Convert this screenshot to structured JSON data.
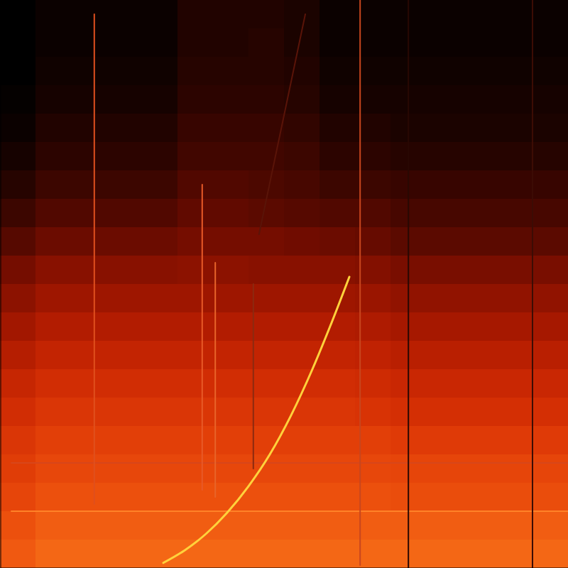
{
  "chart_data": {
    "type": "heatmap",
    "xlim": [
      0,
      100
    ],
    "ylim": [
      0,
      100
    ],
    "zlim": [
      0,
      1
    ],
    "tick_labels": false,
    "grid": false,
    "cells": [
      [
        0.0,
        0.02,
        0.02,
        0.02,
        0.02,
        0.06,
        0.06,
        0.06,
        0.05,
        0.02,
        0.02,
        0.02,
        0.02,
        0.02,
        0.02,
        0.02
      ],
      [
        0.0,
        0.02,
        0.02,
        0.02,
        0.02,
        0.06,
        0.06,
        0.07,
        0.05,
        0.02,
        0.02,
        0.02,
        0.02,
        0.02,
        0.02,
        0.02
      ],
      [
        0.0,
        0.03,
        0.03,
        0.03,
        0.03,
        0.07,
        0.07,
        0.07,
        0.06,
        0.03,
        0.03,
        0.03,
        0.03,
        0.03,
        0.03,
        0.03
      ],
      [
        0.01,
        0.04,
        0.04,
        0.04,
        0.04,
        0.08,
        0.08,
        0.08,
        0.07,
        0.04,
        0.04,
        0.04,
        0.04,
        0.04,
        0.04,
        0.04
      ],
      [
        0.02,
        0.06,
        0.06,
        0.06,
        0.06,
        0.1,
        0.1,
        0.1,
        0.09,
        0.06,
        0.06,
        0.05,
        0.05,
        0.05,
        0.05,
        0.05
      ],
      [
        0.04,
        0.08,
        0.08,
        0.08,
        0.08,
        0.12,
        0.12,
        0.12,
        0.11,
        0.08,
        0.08,
        0.07,
        0.07,
        0.07,
        0.07,
        0.07
      ],
      [
        0.07,
        0.11,
        0.11,
        0.11,
        0.11,
        0.15,
        0.15,
        0.14,
        0.13,
        0.11,
        0.11,
        0.1,
        0.1,
        0.1,
        0.1,
        0.1
      ],
      [
        0.11,
        0.15,
        0.15,
        0.15,
        0.15,
        0.18,
        0.18,
        0.17,
        0.16,
        0.15,
        0.15,
        0.13,
        0.13,
        0.13,
        0.13,
        0.13
      ],
      [
        0.16,
        0.2,
        0.2,
        0.2,
        0.2,
        0.22,
        0.22,
        0.22,
        0.21,
        0.2,
        0.19,
        0.17,
        0.17,
        0.17,
        0.17,
        0.17
      ],
      [
        0.22,
        0.26,
        0.26,
        0.26,
        0.26,
        0.27,
        0.27,
        0.26,
        0.26,
        0.26,
        0.25,
        0.23,
        0.23,
        0.23,
        0.23,
        0.23
      ],
      [
        0.27,
        0.31,
        0.31,
        0.31,
        0.31,
        0.31,
        0.31,
        0.31,
        0.31,
        0.31,
        0.3,
        0.28,
        0.28,
        0.28,
        0.28,
        0.28
      ],
      [
        0.32,
        0.36,
        0.36,
        0.36,
        0.36,
        0.36,
        0.36,
        0.36,
        0.36,
        0.36,
        0.35,
        0.33,
        0.33,
        0.33,
        0.33,
        0.33
      ],
      [
        0.37,
        0.41,
        0.41,
        0.41,
        0.41,
        0.41,
        0.41,
        0.41,
        0.41,
        0.41,
        0.4,
        0.38,
        0.38,
        0.38,
        0.38,
        0.38
      ],
      [
        0.42,
        0.46,
        0.46,
        0.46,
        0.46,
        0.46,
        0.46,
        0.46,
        0.46,
        0.46,
        0.45,
        0.43,
        0.43,
        0.43,
        0.43,
        0.43
      ],
      [
        0.46,
        0.5,
        0.5,
        0.5,
        0.5,
        0.5,
        0.5,
        0.5,
        0.5,
        0.5,
        0.49,
        0.47,
        0.47,
        0.47,
        0.47,
        0.47
      ],
      [
        0.5,
        0.54,
        0.54,
        0.54,
        0.54,
        0.54,
        0.54,
        0.54,
        0.54,
        0.54,
        0.54,
        0.52,
        0.52,
        0.52,
        0.52,
        0.52
      ],
      [
        0.53,
        0.57,
        0.57,
        0.57,
        0.57,
        0.57,
        0.57,
        0.57,
        0.57,
        0.57,
        0.57,
        0.56,
        0.56,
        0.56,
        0.56,
        0.56
      ],
      [
        0.56,
        0.6,
        0.6,
        0.6,
        0.6,
        0.6,
        0.6,
        0.6,
        0.6,
        0.6,
        0.6,
        0.59,
        0.59,
        0.59,
        0.59,
        0.59
      ],
      [
        0.6,
        0.64,
        0.64,
        0.64,
        0.64,
        0.64,
        0.64,
        0.64,
        0.64,
        0.64,
        0.64,
        0.64,
        0.64,
        0.64,
        0.64,
        0.64
      ],
      [
        0.63,
        0.67,
        0.67,
        0.67,
        0.67,
        0.67,
        0.67,
        0.67,
        0.67,
        0.67,
        0.67,
        0.67,
        0.67,
        0.67,
        0.67,
        0.67
      ]
    ],
    "series": [
      {
        "color": "#ff8228",
        "x": [
          2,
          100
        ],
        "values": [
          10,
          10
        ]
      },
      {
        "color": "#d8461a",
        "x": [
          2,
          100
        ],
        "values": [
          18.5,
          18.5
        ]
      },
      {
        "color": "#5a1408",
        "x": [
          45.6,
          53.75
        ],
        "values": [
          58.75,
          97.5
        ]
      },
      {
        "color": "#e0501e",
        "x": [
          16.6,
          16.6
        ],
        "values": [
          11.25,
          97.5
        ]
      },
      {
        "color": "#c8461e",
        "x": [
          63.4,
          63.4
        ],
        "values": [
          0.5,
          100
        ]
      },
      {
        "color": "#e85a28",
        "x": [
          35.6,
          35.6
        ],
        "values": [
          13.75,
          67.5
        ]
      },
      {
        "color": "#e8642a",
        "x": [
          37.9,
          37.9
        ],
        "values": [
          12.5,
          53.75
        ]
      },
      {
        "color": "#8c2a10",
        "x": [
          44.6,
          44.6
        ],
        "values": [
          17.5,
          50
        ]
      },
      {
        "color": "#3c0c04",
        "x": [
          93.75,
          93.75
        ],
        "values": [
          0,
          100
        ]
      },
      {
        "color": "#280802",
        "x": [
          71.9,
          71.9
        ],
        "values": [
          0,
          100
        ]
      },
      {
        "color": "#ffd23c",
        "x": [
          28.75,
          32.5,
          36.25,
          40,
          43.75,
          47.5,
          51.25,
          55,
          58.1,
          61.5
        ],
        "values": [
          0.9,
          3.1,
          6,
          9.75,
          14.4,
          20,
          26.9,
          35,
          42.5,
          51.25
        ]
      }
    ]
  }
}
